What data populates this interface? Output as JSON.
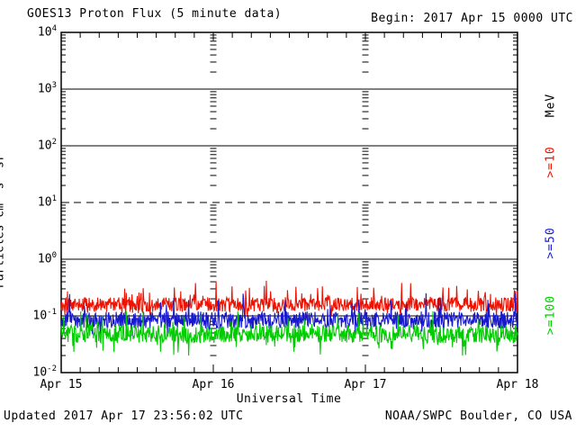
{
  "header": {
    "title": "GOES13 Proton Flux (5 minute data)",
    "begin": "Begin: 2017 Apr 15 0000 UTC"
  },
  "footer": {
    "updated": "Updated 2017 Apr 17 23:56:02 UTC",
    "source": "NOAA/SWPC Boulder, CO USA"
  },
  "chart_data": {
    "type": "line",
    "title": "GOES13 Proton Flux (5 minute data)",
    "x_axis": {
      "label": "Universal Time",
      "tick_labels": [
        "Apr 15",
        "Apr 16",
        "Apr 17",
        "Apr 18"
      ],
      "start": "2017 Apr 15 0000 UTC",
      "end": "2017 Apr 18 0000 UTC",
      "days": 3,
      "minor_tick_hours": 3
    },
    "y_axis": {
      "label": "Particles  cm⁻²s⁻¹sr⁻¹",
      "scale": "log",
      "tick_base": "10",
      "tick_exponents": [
        4,
        3,
        2,
        1,
        0,
        -1,
        -2
      ],
      "min_exp": -2,
      "max_exp": 4
    },
    "gridlines": {
      "solid_exponents": [
        3,
        2,
        0,
        -1
      ],
      "dashed_exponents": [
        1
      ]
    },
    "legend": {
      "units_label": "MeV",
      "entries": [
        {
          "label": ">=10",
          "color": "#ee1100"
        },
        {
          "label": ">=50",
          "color": "#1818cc"
        },
        {
          "label": ">=100",
          "color": "#00cc00"
        }
      ]
    },
    "series": [
      {
        "name": ">=10 MeV",
        "color": "#ee1100",
        "points_per_day": 288,
        "days": 3,
        "approx_mean_flux": 0.16,
        "approx_min_flux": 0.09,
        "approx_max_flux": 0.42,
        "gen": {
          "seed": 101,
          "center_log": -0.8,
          "jitter_log": 0.13,
          "spike_prob": 0.1,
          "spike_max_log": 0.33,
          "dip_prob": 0.06,
          "dip_max_log": 0.15,
          "clamp_log": [
            -1.03,
            -0.38
          ]
        }
      },
      {
        "name": ">=50 MeV",
        "color": "#1818cc",
        "points_per_day": 288,
        "days": 3,
        "approx_mean_flux": 0.085,
        "approx_min_flux": 0.045,
        "approx_max_flux": 0.25,
        "gen": {
          "seed": 202,
          "center_log": -1.07,
          "jitter_log": 0.15,
          "spike_prob": 0.09,
          "spike_max_log": 0.38,
          "dip_prob": 0.05,
          "dip_max_log": 0.18,
          "clamp_log": [
            -1.35,
            -0.6
          ]
        }
      },
      {
        "name": ">=100 MeV",
        "color": "#00cc00",
        "points_per_day": 288,
        "days": 3,
        "approx_mean_flux": 0.047,
        "approx_min_flux": 0.02,
        "approx_max_flux": 0.13,
        "gen": {
          "seed": 303,
          "center_log": -1.32,
          "jitter_log": 0.16,
          "spike_prob": 0.07,
          "spike_max_log": 0.32,
          "dip_prob": 0.08,
          "dip_max_log": 0.28,
          "clamp_log": [
            -1.7,
            -0.92
          ]
        }
      }
    ]
  }
}
